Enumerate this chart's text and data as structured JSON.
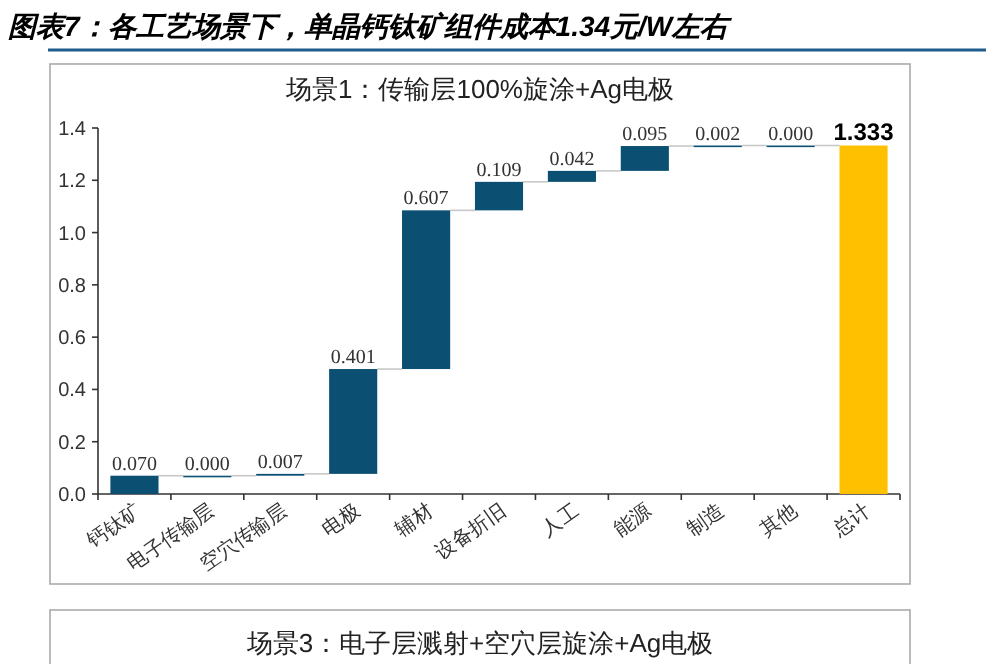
{
  "chart_data": {
    "type": "bar",
    "title": "场景1：传输层100%旋涂+Ag电极",
    "categories": [
      "钙钛矿",
      "电子传输层",
      "空穴传输层",
      "电极",
      "辅材",
      "设备折旧",
      "人工",
      "能源",
      "制造",
      "其他",
      "总计"
    ],
    "values": [
      0.07,
      0.0,
      0.007,
      0.401,
      0.607,
      0.109,
      0.042,
      0.095,
      0.002,
      0.0,
      1.333
    ],
    "base": [
      0,
      0.07,
      0.07,
      0.077,
      0.478,
      1.085,
      1.194,
      1.236,
      1.331,
      1.333,
      0
    ],
    "colors": [
      "#0b4f72",
      "#0b4f72",
      "#0b4f72",
      "#0b4f72",
      "#0b4f72",
      "#0b4f72",
      "#0b4f72",
      "#0b4f72",
      "#0b4f72",
      "#0b4f72",
      "#ffc000"
    ],
    "value_labels": [
      "0.070",
      "0.000",
      "0.007",
      "0.401",
      "0.607",
      "0.109",
      "0.042",
      "0.095",
      "0.002",
      "0.000",
      "1.333"
    ],
    "ylim": [
      0,
      1.4
    ],
    "yticks": [
      {
        "value": 0,
        "label": "0.0"
      },
      {
        "value": 0.2,
        "label": "0.2"
      },
      {
        "value": 0.4,
        "label": "0.4"
      },
      {
        "value": 0.6,
        "label": "0.6"
      },
      {
        "value": 0.8,
        "label": "0.8"
      },
      {
        "value": 1.0,
        "label": "1.0"
      },
      {
        "value": 1.2,
        "label": "1.2"
      },
      {
        "value": 1.4,
        "label": "1.4"
      }
    ],
    "annotations": [
      "图表7：各工艺场景下，单晶钙钛矿组件成本1.34元/W左右",
      "场景3：电子层溅射+空穴层旋涂+Ag电极"
    ]
  }
}
